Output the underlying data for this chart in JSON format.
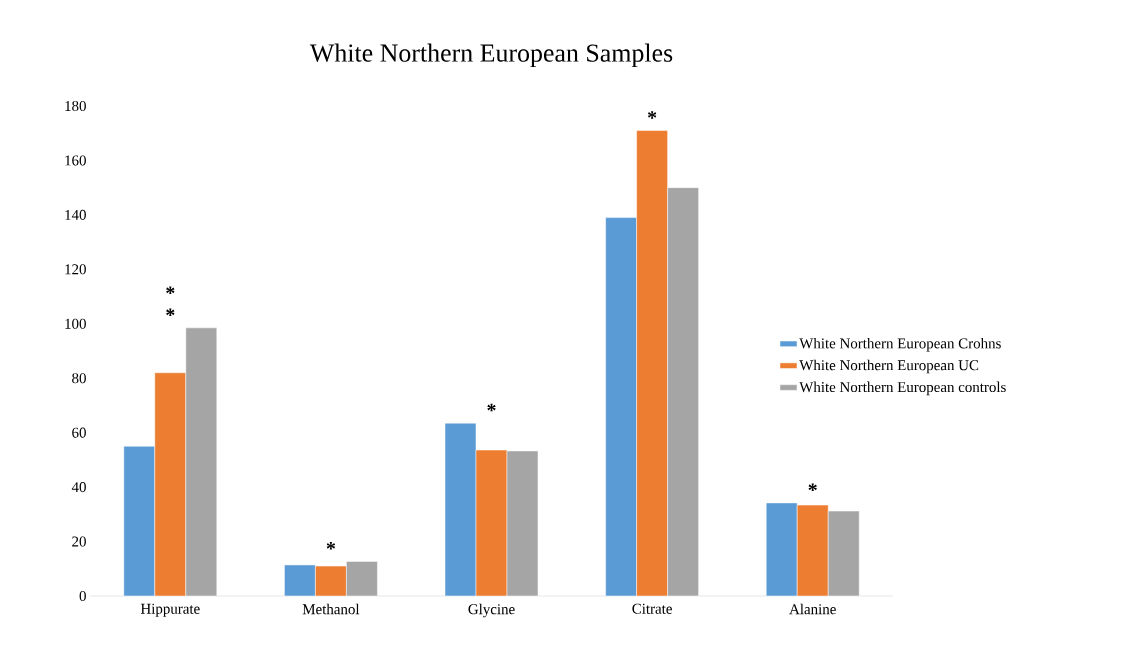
{
  "chart_data": {
    "type": "bar",
    "title": "White Northern European Samples",
    "categories": [
      "Hippurate",
      "Methanol",
      "Glycine",
      "Citrate",
      "Alanine"
    ],
    "series": [
      {
        "name": "White Northern European Crohns",
        "color": "#5b9bd5",
        "values": [
          55,
          11.4,
          63.5,
          139,
          34.2
        ]
      },
      {
        "name": "White Northern European UC",
        "color": "#ed7d31",
        "values": [
          82,
          11,
          53.6,
          171,
          33.4
        ]
      },
      {
        "name": "White Northern European controls",
        "color": "#a5a5a5",
        "values": [
          98.5,
          12.7,
          53.3,
          150,
          31.2
        ]
      }
    ],
    "ylim": [
      0,
      180
    ],
    "yticks": [
      0,
      20,
      40,
      60,
      80,
      100,
      120,
      140,
      160,
      180
    ],
    "grid": false,
    "legend": "right",
    "annotations": [
      "*",
      "*",
      "*",
      "*",
      "*",
      "*"
    ]
  }
}
